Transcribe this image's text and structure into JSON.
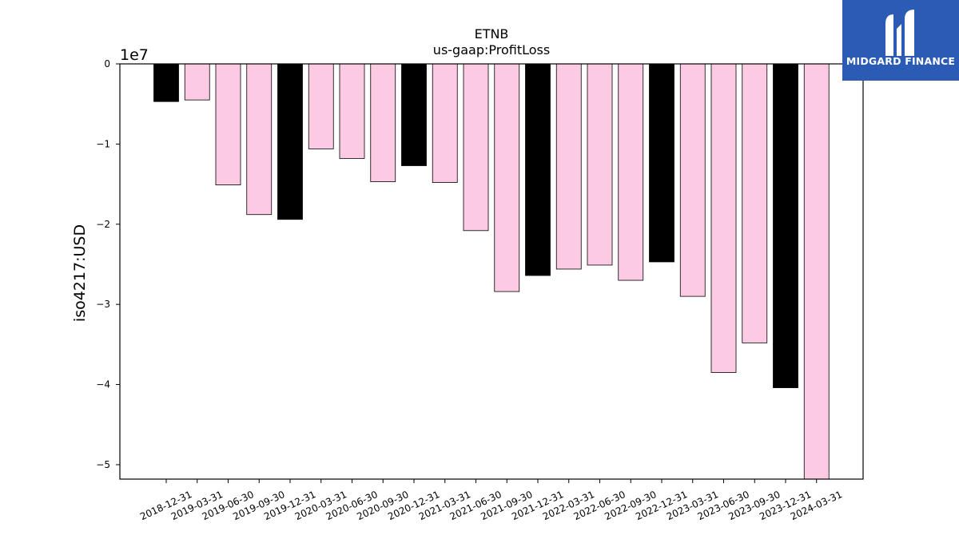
{
  "brand": {
    "name": "MIDGARD FINANCE",
    "color": "#2b5bb5"
  },
  "chart_data": {
    "type": "bar",
    "title": "ETNB",
    "subtitle": "us-gaap:ProfitLoss",
    "ylabel": "iso4217:USD",
    "xlabel": "",
    "y_multiplier_label": "1e7",
    "ylim": [
      -5.18,
      0
    ],
    "yticks": [
      0,
      -1,
      -2,
      -3,
      -4,
      -5
    ],
    "ytick_labels": [
      "0",
      "−1",
      "−2",
      "−3",
      "−4",
      "−5"
    ],
    "grid": false,
    "categories": [
      "2018-12-31",
      "2019-03-31",
      "2019-06-30",
      "2019-09-30",
      "2019-12-31",
      "2020-03-31",
      "2020-06-30",
      "2020-09-30",
      "2020-12-31",
      "2021-03-31",
      "2021-06-30",
      "2021-09-30",
      "2021-12-31",
      "2022-03-31",
      "2022-06-30",
      "2022-09-30",
      "2022-12-31",
      "2023-03-31",
      "2023-06-30",
      "2023-09-30",
      "2023-12-31",
      "2024-03-31"
    ],
    "values": [
      -0.47,
      -0.45,
      -1.51,
      -1.88,
      -1.94,
      -1.06,
      -1.18,
      -1.47,
      -1.27,
      -1.48,
      -2.08,
      -2.84,
      -2.64,
      -2.56,
      -2.51,
      -2.7,
      -2.47,
      -2.9,
      -3.85,
      -3.48,
      -4.04,
      -5.18
    ],
    "bar_colors": [
      "#000000",
      "#fccbe3",
      "#fccbe3",
      "#fccbe3",
      "#000000",
      "#fccbe3",
      "#fccbe3",
      "#fccbe3",
      "#000000",
      "#fccbe3",
      "#fccbe3",
      "#fccbe3",
      "#000000",
      "#fccbe3",
      "#fccbe3",
      "#fccbe3",
      "#000000",
      "#fccbe3",
      "#fccbe3",
      "#fccbe3",
      "#000000",
      "#fccbe3"
    ]
  }
}
